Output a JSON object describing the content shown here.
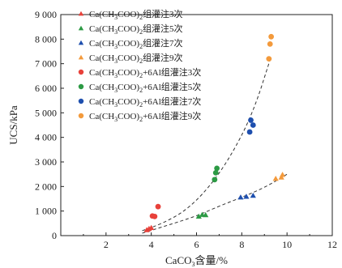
{
  "chart_data": {
    "type": "scatter",
    "xlabel": "CaCO3含量/%",
    "ylabel": "UCS/kPa",
    "xlim": [
      0,
      12
    ],
    "ylim": [
      0,
      9000
    ],
    "x_ticks": [
      "2",
      "4",
      "6",
      "8",
      "10",
      "12"
    ],
    "y_ticks": [
      "0",
      "1 000",
      "2 000",
      "3 000",
      "4 000",
      "5 000",
      "6 000",
      "7 000",
      "8 000",
      "9 000"
    ],
    "grid": false,
    "legend_position": "top-left",
    "colors": {
      "red": "#e8413a",
      "green": "#2c9a44",
      "blue": "#1e4fae",
      "orange": "#f39a3c",
      "fit_line": "#333333"
    },
    "series": [
      {
        "name": "Ca(CH3COO)2组灌注3次",
        "marker": "triangle",
        "color": "#e8413a",
        "points": [
          [
            3.8,
            230
          ],
          [
            3.9,
            280
          ],
          [
            4.0,
            320
          ]
        ]
      },
      {
        "name": "Ca(CH3COO)2组灌注5次",
        "marker": "triangle",
        "color": "#2c9a44",
        "points": [
          [
            6.1,
            780
          ],
          [
            6.25,
            850
          ],
          [
            6.4,
            840
          ]
        ]
      },
      {
        "name": "Ca(CH3COO)2组灌注7次",
        "marker": "triangle",
        "color": "#1e4fae",
        "points": [
          [
            7.95,
            1560
          ],
          [
            8.2,
            1590
          ],
          [
            8.5,
            1630
          ]
        ]
      },
      {
        "name": "Ca(CH3COO)2组灌注9次",
        "marker": "triangle",
        "color": "#f39a3c",
        "points": [
          [
            9.5,
            2320
          ],
          [
            9.75,
            2370
          ],
          [
            9.8,
            2480
          ]
        ]
      },
      {
        "name": "Ca(CH3COO)2+6Al组灌注3次",
        "marker": "circle",
        "color": "#e8413a",
        "points": [
          [
            4.05,
            800
          ],
          [
            4.15,
            780
          ],
          [
            4.3,
            1180
          ]
        ]
      },
      {
        "name": "Ca(CH3COO)2+6Al组灌注5次",
        "marker": "circle",
        "color": "#2c9a44",
        "points": [
          [
            6.8,
            2280
          ],
          [
            6.85,
            2560
          ],
          [
            6.9,
            2740
          ]
        ]
      },
      {
        "name": "Ca(CH3COO)2+6Al组灌注7次",
        "marker": "circle",
        "color": "#1e4fae",
        "points": [
          [
            8.35,
            4220
          ],
          [
            8.4,
            4700
          ],
          [
            8.5,
            4500
          ]
        ]
      },
      {
        "name": "Ca(CH3COO)2+6Al组灌注9次",
        "marker": "circle",
        "color": "#f39a3c",
        "points": [
          [
            9.2,
            7200
          ],
          [
            9.25,
            7800
          ],
          [
            9.3,
            8100
          ]
        ]
      }
    ],
    "fit_lines": [
      {
        "points": [
          [
            3.6,
            200
          ],
          [
            4.5,
            500
          ],
          [
            5.5,
            1000
          ],
          [
            6.5,
            1900
          ],
          [
            7.5,
            3200
          ],
          [
            8.5,
            5000
          ],
          [
            9.3,
            7300
          ]
        ]
      },
      {
        "points": [
          [
            3.6,
            100
          ],
          [
            5.0,
            500
          ],
          [
            6.0,
            800
          ],
          [
            7.0,
            1200
          ],
          [
            8.0,
            1560
          ],
          [
            9.0,
            1950
          ],
          [
            10.0,
            2500
          ]
        ]
      }
    ]
  }
}
